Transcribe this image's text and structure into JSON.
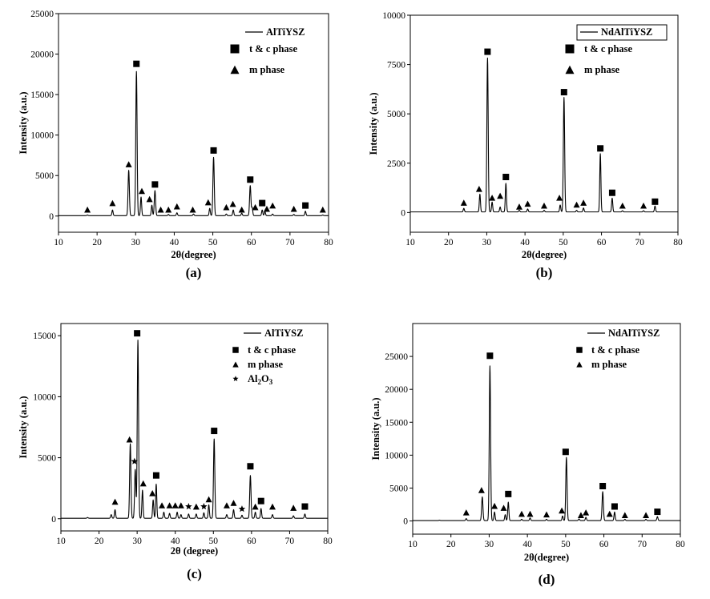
{
  "chart_data": [
    {
      "type": "line",
      "panel_label": "(a)",
      "xlabel": "2θ(degree)",
      "ylabel": "Intensity (a.u.)",
      "xlim": [
        10,
        80
      ],
      "ylim": [
        -2000,
        25000
      ],
      "xticks": [
        10,
        20,
        30,
        40,
        50,
        60,
        70,
        80
      ],
      "yticks": [
        0,
        5000,
        10000,
        15000,
        20000,
        25000
      ],
      "legend_position": "top-right",
      "legend_boxed": false,
      "series": [
        {
          "name": "AlTiYSZ"
        }
      ],
      "legend_markers": [
        {
          "symbol": "square",
          "label": "t & c phase"
        },
        {
          "symbol": "triangle",
          "label": "m phase"
        }
      ],
      "baseline": 50,
      "peaks": [
        {
          "x": 17.5,
          "y": 80
        },
        {
          "x": 24.0,
          "y": 700
        },
        {
          "x": 28.2,
          "y": 5600
        },
        {
          "x": 30.2,
          "y": 17800
        },
        {
          "x": 31.4,
          "y": 2300
        },
        {
          "x": 34.2,
          "y": 1300
        },
        {
          "x": 35.0,
          "y": 3100
        },
        {
          "x": 38.5,
          "y": 150
        },
        {
          "x": 40.7,
          "y": 350
        },
        {
          "x": 45.0,
          "y": 200
        },
        {
          "x": 49.2,
          "y": 900
        },
        {
          "x": 50.2,
          "y": 7200
        },
        {
          "x": 53.5,
          "y": 200
        },
        {
          "x": 55.3,
          "y": 700
        },
        {
          "x": 57.5,
          "y": 300
        },
        {
          "x": 59.7,
          "y": 3700
        },
        {
          "x": 60.2,
          "y": 1000
        },
        {
          "x": 62.8,
          "y": 700
        },
        {
          "x": 63.5,
          "y": 500
        },
        {
          "x": 65.5,
          "y": 200
        },
        {
          "x": 71.0,
          "y": 150
        },
        {
          "x": 74.0,
          "y": 550
        },
        {
          "x": 78.5,
          "y": 80
        }
      ],
      "markers": [
        {
          "symbol": "square",
          "x": 30.2,
          "y": 18800
        },
        {
          "symbol": "square",
          "x": 35.0,
          "y": 3900
        },
        {
          "symbol": "square",
          "x": 50.2,
          "y": 8100
        },
        {
          "symbol": "square",
          "x": 59.7,
          "y": 4500
        },
        {
          "symbol": "square",
          "x": 62.8,
          "y": 1600
        },
        {
          "symbol": "square",
          "x": 74.0,
          "y": 1300
        },
        {
          "symbol": "triangle",
          "x": 17.5,
          "y": 800
        },
        {
          "symbol": "triangle",
          "x": 24.0,
          "y": 1600
        },
        {
          "symbol": "triangle",
          "x": 28.2,
          "y": 6400
        },
        {
          "symbol": "triangle",
          "x": 31.6,
          "y": 3100
        },
        {
          "symbol": "triangle",
          "x": 33.6,
          "y": 2100
        },
        {
          "symbol": "triangle",
          "x": 36.5,
          "y": 800
        },
        {
          "symbol": "triangle",
          "x": 38.5,
          "y": 800
        },
        {
          "symbol": "triangle",
          "x": 40.7,
          "y": 1200
        },
        {
          "symbol": "triangle",
          "x": 44.8,
          "y": 800
        },
        {
          "symbol": "triangle",
          "x": 48.8,
          "y": 1700
        },
        {
          "symbol": "triangle",
          "x": 53.5,
          "y": 1100
        },
        {
          "symbol": "triangle",
          "x": 55.2,
          "y": 1500
        },
        {
          "symbol": "triangle",
          "x": 57.5,
          "y": 800
        },
        {
          "symbol": "triangle",
          "x": 61.0,
          "y": 1100
        },
        {
          "symbol": "triangle",
          "x": 64.0,
          "y": 900
        },
        {
          "symbol": "triangle",
          "x": 65.5,
          "y": 1300
        },
        {
          "symbol": "triangle",
          "x": 71.0,
          "y": 900
        },
        {
          "symbol": "triangle",
          "x": 78.5,
          "y": 800
        }
      ]
    },
    {
      "type": "line",
      "panel_label": "(b)",
      "xlabel": "2θ(degree)",
      "ylabel": "Intensity (a.u.)",
      "xlim": [
        10,
        80
      ],
      "ylim": [
        -1000,
        10000
      ],
      "xticks": [
        10,
        20,
        30,
        40,
        50,
        60,
        70,
        80
      ],
      "yticks": [
        0,
        2500,
        5000,
        7500,
        10000
      ],
      "legend_position": "top-right",
      "legend_boxed": true,
      "series": [
        {
          "name": "NdAlTiYSZ"
        }
      ],
      "legend_markers": [
        {
          "symbol": "square",
          "label": "t & c phase"
        },
        {
          "symbol": "triangle",
          "label": "m phase"
        }
      ],
      "baseline": 30,
      "peaks": [
        {
          "x": 24.0,
          "y": 180
        },
        {
          "x": 28.2,
          "y": 900
        },
        {
          "x": 30.2,
          "y": 7800
        },
        {
          "x": 31.4,
          "y": 500
        },
        {
          "x": 33.5,
          "y": 250
        },
        {
          "x": 35.0,
          "y": 1450
        },
        {
          "x": 38.5,
          "y": 80
        },
        {
          "x": 40.7,
          "y": 150
        },
        {
          "x": 45.0,
          "y": 80
        },
        {
          "x": 49.2,
          "y": 350
        },
        {
          "x": 50.2,
          "y": 5800
        },
        {
          "x": 53.5,
          "y": 80
        },
        {
          "x": 55.3,
          "y": 200
        },
        {
          "x": 59.7,
          "y": 2950
        },
        {
          "x": 62.8,
          "y": 700
        },
        {
          "x": 65.5,
          "y": 60
        },
        {
          "x": 71.0,
          "y": 60
        },
        {
          "x": 74.0,
          "y": 300
        }
      ],
      "markers": [
        {
          "symbol": "square",
          "x": 30.2,
          "y": 8150
        },
        {
          "symbol": "square",
          "x": 35.0,
          "y": 1800
        },
        {
          "symbol": "square",
          "x": 50.2,
          "y": 6100
        },
        {
          "symbol": "square",
          "x": 59.7,
          "y": 3250
        },
        {
          "symbol": "square",
          "x": 62.8,
          "y": 1000
        },
        {
          "symbol": "square",
          "x": 74.0,
          "y": 550
        },
        {
          "symbol": "triangle",
          "x": 24.0,
          "y": 500
        },
        {
          "symbol": "triangle",
          "x": 28.0,
          "y": 1200
        },
        {
          "symbol": "triangle",
          "x": 31.4,
          "y": 750
        },
        {
          "symbol": "triangle",
          "x": 33.5,
          "y": 850
        },
        {
          "symbol": "triangle",
          "x": 38.5,
          "y": 300
        },
        {
          "symbol": "triangle",
          "x": 40.7,
          "y": 450
        },
        {
          "symbol": "triangle",
          "x": 45.0,
          "y": 350
        },
        {
          "symbol": "triangle",
          "x": 49.0,
          "y": 750
        },
        {
          "symbol": "triangle",
          "x": 53.5,
          "y": 400
        },
        {
          "symbol": "triangle",
          "x": 55.3,
          "y": 500
        },
        {
          "symbol": "triangle",
          "x": 65.5,
          "y": 350
        },
        {
          "symbol": "triangle",
          "x": 71.0,
          "y": 350
        }
      ]
    },
    {
      "type": "line",
      "panel_label": "(c)",
      "xlabel": "2θ (degree)",
      "ylabel": "Intensity (a.u.)",
      "xlim": [
        10,
        80
      ],
      "ylim": [
        -1000,
        16000
      ],
      "xticks": [
        10,
        20,
        30,
        40,
        50,
        60,
        70,
        80
      ],
      "yticks": [
        0,
        5000,
        10000,
        15000
      ],
      "legend_position": "top-right",
      "legend_boxed": false,
      "series": [
        {
          "name": "AlTiYSZ"
        }
      ],
      "legend_markers": [
        {
          "symbol": "square",
          "label": "t & c phase"
        },
        {
          "symbol": "triangle",
          "label": "m phase"
        },
        {
          "symbol": "star",
          "label": "Al",
          "sub": "2",
          "label_mid": "O",
          "sub2": "3"
        }
      ],
      "baseline": 40,
      "peaks": [
        {
          "x": 17.0,
          "y": 60
        },
        {
          "x": 23.2,
          "y": 300
        },
        {
          "x": 24.2,
          "y": 700
        },
        {
          "x": 28.2,
          "y": 6100
        },
        {
          "x": 29.5,
          "y": 4000
        },
        {
          "x": 30.2,
          "y": 14600
        },
        {
          "x": 31.4,
          "y": 2300
        },
        {
          "x": 34.2,
          "y": 1500
        },
        {
          "x": 35.0,
          "y": 2800
        },
        {
          "x": 37.0,
          "y": 500
        },
        {
          "x": 38.5,
          "y": 400
        },
        {
          "x": 40.5,
          "y": 500
        },
        {
          "x": 41.5,
          "y": 300
        },
        {
          "x": 43.5,
          "y": 350
        },
        {
          "x": 45.5,
          "y": 350
        },
        {
          "x": 47.5,
          "y": 450
        },
        {
          "x": 48.8,
          "y": 1100
        },
        {
          "x": 50.2,
          "y": 6500
        },
        {
          "x": 53.5,
          "y": 300
        },
        {
          "x": 55.3,
          "y": 700
        },
        {
          "x": 57.5,
          "y": 250
        },
        {
          "x": 59.7,
          "y": 3500
        },
        {
          "x": 61.0,
          "y": 500
        },
        {
          "x": 62.5,
          "y": 800
        },
        {
          "x": 65.5,
          "y": 300
        },
        {
          "x": 71.0,
          "y": 200
        },
        {
          "x": 74.0,
          "y": 350
        }
      ],
      "markers": [
        {
          "symbol": "square",
          "x": 30.0,
          "y": 15200
        },
        {
          "symbol": "square",
          "x": 35.0,
          "y": 3550
        },
        {
          "symbol": "square",
          "x": 50.2,
          "y": 7200
        },
        {
          "symbol": "square",
          "x": 59.7,
          "y": 4300
        },
        {
          "symbol": "square",
          "x": 62.5,
          "y": 1450
        },
        {
          "symbol": "square",
          "x": 74.0,
          "y": 1000
        },
        {
          "symbol": "triangle",
          "x": 24.2,
          "y": 1400
        },
        {
          "symbol": "triangle",
          "x": 28.0,
          "y": 6500
        },
        {
          "symbol": "triangle",
          "x": 31.6,
          "y": 2900
        },
        {
          "symbol": "triangle",
          "x": 34.0,
          "y": 2100
        },
        {
          "symbol": "triangle",
          "x": 36.5,
          "y": 1100
        },
        {
          "symbol": "triangle",
          "x": 38.5,
          "y": 1100
        },
        {
          "symbol": "triangle",
          "x": 40.0,
          "y": 1100
        },
        {
          "symbol": "triangle",
          "x": 41.5,
          "y": 1100
        },
        {
          "symbol": "triangle",
          "x": 45.5,
          "y": 1000
        },
        {
          "symbol": "triangle",
          "x": 48.8,
          "y": 1600
        },
        {
          "symbol": "triangle",
          "x": 53.5,
          "y": 1100
        },
        {
          "symbol": "triangle",
          "x": 55.3,
          "y": 1300
        },
        {
          "symbol": "triangle",
          "x": 61.0,
          "y": 1000
        },
        {
          "symbol": "triangle",
          "x": 65.5,
          "y": 1000
        },
        {
          "symbol": "triangle",
          "x": 71.0,
          "y": 900
        },
        {
          "symbol": "star",
          "x": 29.3,
          "y": 4700
        },
        {
          "symbol": "star",
          "x": 43.5,
          "y": 1000
        },
        {
          "symbol": "star",
          "x": 47.5,
          "y": 1000
        },
        {
          "symbol": "star",
          "x": 57.5,
          "y": 800
        }
      ]
    },
    {
      "type": "line",
      "panel_label": "(d)",
      "xlabel": "2θ(degree)",
      "ylabel": "Intensity (a.u.)",
      "xlim": [
        10,
        80
      ],
      "ylim": [
        -2000,
        30000
      ],
      "xticks": [
        10,
        20,
        30,
        40,
        50,
        60,
        70,
        80
      ],
      "yticks": [
        0,
        5000,
        10000,
        15000,
        20000,
        25000
      ],
      "legend_position": "top-right",
      "legend_boxed": false,
      "series": [
        {
          "name": "NdAlTiYSZ"
        }
      ],
      "legend_markers": [
        {
          "symbol": "square",
          "label": "t & c phase"
        },
        {
          "symbol": "triangle",
          "label": "m phase"
        }
      ],
      "baseline": 60,
      "peaks": [
        {
          "x": 17.0,
          "y": 60
        },
        {
          "x": 24.0,
          "y": 300
        },
        {
          "x": 28.2,
          "y": 3600
        },
        {
          "x": 30.2,
          "y": 23500
        },
        {
          "x": 31.4,
          "y": 1300
        },
        {
          "x": 34.2,
          "y": 900
        },
        {
          "x": 35.0,
          "y": 2800
        },
        {
          "x": 38.5,
          "y": 200
        },
        {
          "x": 40.7,
          "y": 400
        },
        {
          "x": 45.0,
          "y": 200
        },
        {
          "x": 49.2,
          "y": 700
        },
        {
          "x": 50.2,
          "y": 9600
        },
        {
          "x": 53.5,
          "y": 250
        },
        {
          "x": 55.3,
          "y": 500
        },
        {
          "x": 59.7,
          "y": 4400
        },
        {
          "x": 62.8,
          "y": 1300
        },
        {
          "x": 65.5,
          "y": 200
        },
        {
          "x": 71.0,
          "y": 200
        },
        {
          "x": 74.0,
          "y": 600
        }
      ],
      "markers": [
        {
          "symbol": "square",
          "x": 30.2,
          "y": 25100
        },
        {
          "symbol": "square",
          "x": 35.0,
          "y": 4100
        },
        {
          "symbol": "square",
          "x": 50.0,
          "y": 10500
        },
        {
          "symbol": "square",
          "x": 59.7,
          "y": 5300
        },
        {
          "symbol": "square",
          "x": 62.8,
          "y": 2200
        },
        {
          "symbol": "square",
          "x": 74.0,
          "y": 1400
        },
        {
          "symbol": "triangle",
          "x": 24.0,
          "y": 1300
        },
        {
          "symbol": "triangle",
          "x": 28.0,
          "y": 4700
        },
        {
          "symbol": "triangle",
          "x": 31.4,
          "y": 2300
        },
        {
          "symbol": "triangle",
          "x": 33.8,
          "y": 2000
        },
        {
          "symbol": "triangle",
          "x": 38.5,
          "y": 1100
        },
        {
          "symbol": "triangle",
          "x": 40.7,
          "y": 1100
        },
        {
          "symbol": "triangle",
          "x": 45.0,
          "y": 1000
        },
        {
          "symbol": "triangle",
          "x": 49.0,
          "y": 1600
        },
        {
          "symbol": "triangle",
          "x": 54.0,
          "y": 900
        },
        {
          "symbol": "triangle",
          "x": 55.3,
          "y": 1300
        },
        {
          "symbol": "triangle",
          "x": 61.5,
          "y": 1100
        },
        {
          "symbol": "triangle",
          "x": 65.5,
          "y": 900
        },
        {
          "symbol": "triangle",
          "x": 71.0,
          "y": 900
        }
      ]
    }
  ]
}
